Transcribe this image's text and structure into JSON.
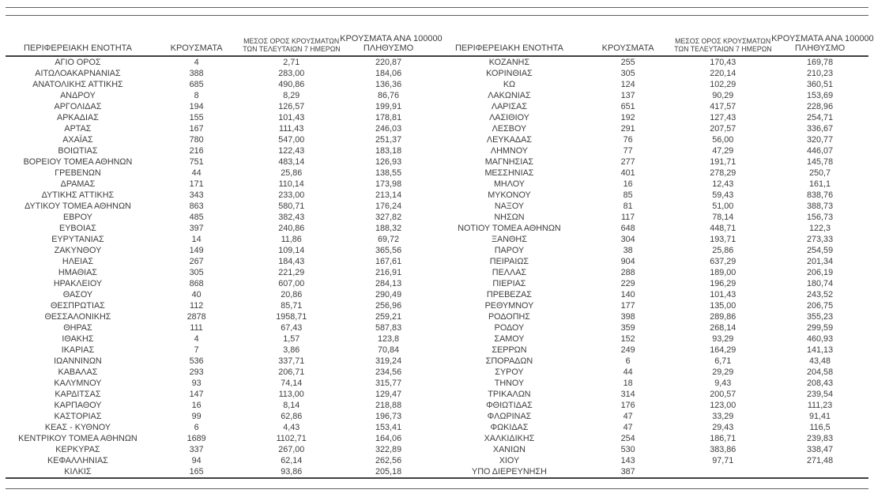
{
  "table": {
    "headers": {
      "region": "ΠΕΡΙΦΕΡΕΙΑΚΗ ΕΝΟΤΗΤΑ",
      "cases": "ΚΡΟΥΣΜΑΤΑ",
      "avg7_line1": "ΜΕΣΟΣ ΟΡΟΣ ΚΡΟΥΣΜΑΤΩΝ",
      "avg7_line2": "ΤΩΝ ΤΕΛΕΥΤΑΙΩΝ 7 ΗΜΕΡΩΝ",
      "per100k_line1": "ΚΡΟΥΣΜΑΤΑ ΑΝΑ 100000",
      "per100k_line2": "ΠΛΗΘΥΣΜΟ"
    },
    "left_rows": [
      [
        "ΑΓΙΟ ΟΡΟΣ",
        "4",
        "2,71",
        "220,87"
      ],
      [
        "ΑΙΤΩΛΟΑΚΑΡΝΑΝΙΑΣ",
        "388",
        "283,00",
        "184,06"
      ],
      [
        "ΑΝΑΤΟΛΙΚΗΣ ΑΤΤΙΚΗΣ",
        "685",
        "490,86",
        "136,36"
      ],
      [
        "ΑΝΔΡΟΥ",
        "8",
        "8,29",
        "86,76"
      ],
      [
        "ΑΡΓΟΛΙΔΑΣ",
        "194",
        "126,57",
        "199,91"
      ],
      [
        "ΑΡΚΑΔΙΑΣ",
        "155",
        "101,43",
        "178,81"
      ],
      [
        "ΑΡΤΑΣ",
        "167",
        "111,43",
        "246,03"
      ],
      [
        "ΑΧΑΪΑΣ",
        "780",
        "547,00",
        "251,37"
      ],
      [
        "ΒΟΙΩΤΙΑΣ",
        "216",
        "122,43",
        "183,18"
      ],
      [
        "ΒΟΡΕΙΟΥ ΤΟΜΕΑ ΑΘΗΝΩΝ",
        "751",
        "483,14",
        "126,93"
      ],
      [
        "ΓΡΕΒΕΝΩΝ",
        "44",
        "25,86",
        "138,55"
      ],
      [
        "ΔΡΑΜΑΣ",
        "171",
        "110,14",
        "173,98"
      ],
      [
        "ΔΥΤΙΚΗΣ ΑΤΤΙΚΗΣ",
        "343",
        "233,00",
        "213,14"
      ],
      [
        "ΔΥΤΙΚΟΥ ΤΟΜΕΑ ΑΘΗΝΩΝ",
        "863",
        "580,71",
        "176,24"
      ],
      [
        "ΕΒΡΟΥ",
        "485",
        "382,43",
        "327,82"
      ],
      [
        "ΕΥΒΟΙΑΣ",
        "397",
        "240,86",
        "188,32"
      ],
      [
        "ΕΥΡΥΤΑΝΙΑΣ",
        "14",
        "11,86",
        "69,72"
      ],
      [
        "ΖΑΚΥΝΘΟΥ",
        "149",
        "109,14",
        "365,56"
      ],
      [
        "ΗΛΕΙΑΣ",
        "267",
        "184,43",
        "167,61"
      ],
      [
        "ΗΜΑΘΙΑΣ",
        "305",
        "221,29",
        "216,91"
      ],
      [
        "ΗΡΑΚΛΕΙΟΥ",
        "868",
        "607,00",
        "284,13"
      ],
      [
        "ΘΑΣΟΥ",
        "40",
        "20,86",
        "290,49"
      ],
      [
        "ΘΕΣΠΡΩΤΙΑΣ",
        "112",
        "85,71",
        "256,96"
      ],
      [
        "ΘΕΣΣΑΛΟΝΙΚΗΣ",
        "2878",
        "1958,71",
        "259,21"
      ],
      [
        "ΘΗΡΑΣ",
        "111",
        "67,43",
        "587,83"
      ],
      [
        "ΙΘΑΚΗΣ",
        "4",
        "1,57",
        "123,8"
      ],
      [
        "ΙΚΑΡΙΑΣ",
        "7",
        "3,86",
        "70,84"
      ],
      [
        "ΙΩΑΝΝΙΝΩΝ",
        "536",
        "337,71",
        "319,24"
      ],
      [
        "ΚΑΒΑΛΑΣ",
        "293",
        "206,71",
        "234,56"
      ],
      [
        "ΚΑΛΥΜΝΟΥ",
        "93",
        "74,14",
        "315,77"
      ],
      [
        "ΚΑΡΔΙΤΣΑΣ",
        "147",
        "113,00",
        "129,47"
      ],
      [
        "ΚΑΡΠΑΘΟΥ",
        "16",
        "8,14",
        "218,88"
      ],
      [
        "ΚΑΣΤΟΡΙΑΣ",
        "99",
        "62,86",
        "196,73"
      ],
      [
        "ΚΕΑΣ - ΚΥΘΝΟΥ",
        "6",
        "4,43",
        "153,41"
      ],
      [
        "ΚΕΝΤΡΙΚΟΥ ΤΟΜΕΑ ΑΘΗΝΩΝ",
        "1689",
        "1102,71",
        "164,06"
      ],
      [
        "ΚΕΡΚΥΡΑΣ",
        "337",
        "267,00",
        "322,89"
      ],
      [
        "ΚΕΦΑΛΛΗΝΙΑΣ",
        "94",
        "62,14",
        "262,56"
      ],
      [
        "ΚΙΛΚΙΣ",
        "165",
        "93,86",
        "205,18"
      ]
    ],
    "right_rows": [
      [
        "ΚΟΖΑΝΗΣ",
        "255",
        "170,43",
        "169,78"
      ],
      [
        "ΚΟΡΙΝΘΙΑΣ",
        "305",
        "220,14",
        "210,23"
      ],
      [
        "ΚΩ",
        "124",
        "102,29",
        "360,51"
      ],
      [
        "ΛΑΚΩΝΙΑΣ",
        "137",
        "90,29",
        "153,69"
      ],
      [
        "ΛΑΡΙΣΑΣ",
        "651",
        "417,57",
        "228,96"
      ],
      [
        "ΛΑΣΙΘΙΟΥ",
        "192",
        "127,43",
        "254,71"
      ],
      [
        "ΛΕΣΒΟΥ",
        "291",
        "207,57",
        "336,67"
      ],
      [
        "ΛΕΥΚΑΔΑΣ",
        "76",
        "56,00",
        "320,77"
      ],
      [
        "ΛΗΜΝΟΥ",
        "77",
        "47,29",
        "446,07"
      ],
      [
        "ΜΑΓΝΗΣΙΑΣ",
        "277",
        "191,71",
        "145,78"
      ],
      [
        "ΜΕΣΣΗΝΙΑΣ",
        "401",
        "278,29",
        "250,7"
      ],
      [
        "ΜΗΛΟΥ",
        "16",
        "12,43",
        "161,1"
      ],
      [
        "ΜΥΚΟΝΟΥ",
        "85",
        "59,43",
        "838,76"
      ],
      [
        "ΝΑΞΟΥ",
        "81",
        "51,00",
        "388,73"
      ],
      [
        "ΝΗΣΩΝ",
        "117",
        "78,14",
        "156,73"
      ],
      [
        "ΝΟΤΙΟΥ ΤΟΜΕΑ ΑΘΗΝΩΝ",
        "648",
        "448,71",
        "122,3"
      ],
      [
        "ΞΑΝΘΗΣ",
        "304",
        "193,71",
        "273,33"
      ],
      [
        "ΠΑΡΟΥ",
        "38",
        "25,86",
        "254,59"
      ],
      [
        "ΠΕΙΡΑΙΩΣ",
        "904",
        "637,29",
        "201,34"
      ],
      [
        "ΠΕΛΛΑΣ",
        "288",
        "189,00",
        "206,19"
      ],
      [
        "ΠΙΕΡΙΑΣ",
        "229",
        "196,29",
        "180,74"
      ],
      [
        "ΠΡΕΒΕΖΑΣ",
        "140",
        "101,43",
        "243,52"
      ],
      [
        "ΡΕΘΥΜΝΟΥ",
        "177",
        "135,00",
        "206,75"
      ],
      [
        "ΡΟΔΟΠΗΣ",
        "398",
        "289,86",
        "355,23"
      ],
      [
        "ΡΟΔΟΥ",
        "359",
        "268,14",
        "299,59"
      ],
      [
        "ΣΑΜΟΥ",
        "152",
        "93,29",
        "460,93"
      ],
      [
        "ΣΕΡΡΩΝ",
        "249",
        "164,29",
        "141,13"
      ],
      [
        "ΣΠΟΡΑΔΩΝ",
        "6",
        "6,71",
        "43,48"
      ],
      [
        "ΣΥΡΟΥ",
        "44",
        "29,29",
        "204,58"
      ],
      [
        "ΤΗΝΟΥ",
        "18",
        "9,43",
        "208,43"
      ],
      [
        "ΤΡΙΚΑΛΩΝ",
        "314",
        "200,57",
        "239,54"
      ],
      [
        "ΦΘΙΩΤΙΔΑΣ",
        "176",
        "123,00",
        "111,23"
      ],
      [
        "ΦΛΩΡΙΝΑΣ",
        "47",
        "33,29",
        "91,41"
      ],
      [
        "ΦΩΚΙΔΑΣ",
        "47",
        "29,43",
        "116,5"
      ],
      [
        "ΧΑΛΚΙΔΙΚΗΣ",
        "254",
        "186,71",
        "239,83"
      ],
      [
        "ΧΑΝΙΩΝ",
        "530",
        "383,86",
        "338,47"
      ],
      [
        "ΧΙΟΥ",
        "143",
        "97,71",
        "271,48"
      ],
      [
        "ΥΠΟ ΔΙΕΡΕΥΝΗΣΗ",
        "387",
        "",
        ""
      ]
    ]
  }
}
